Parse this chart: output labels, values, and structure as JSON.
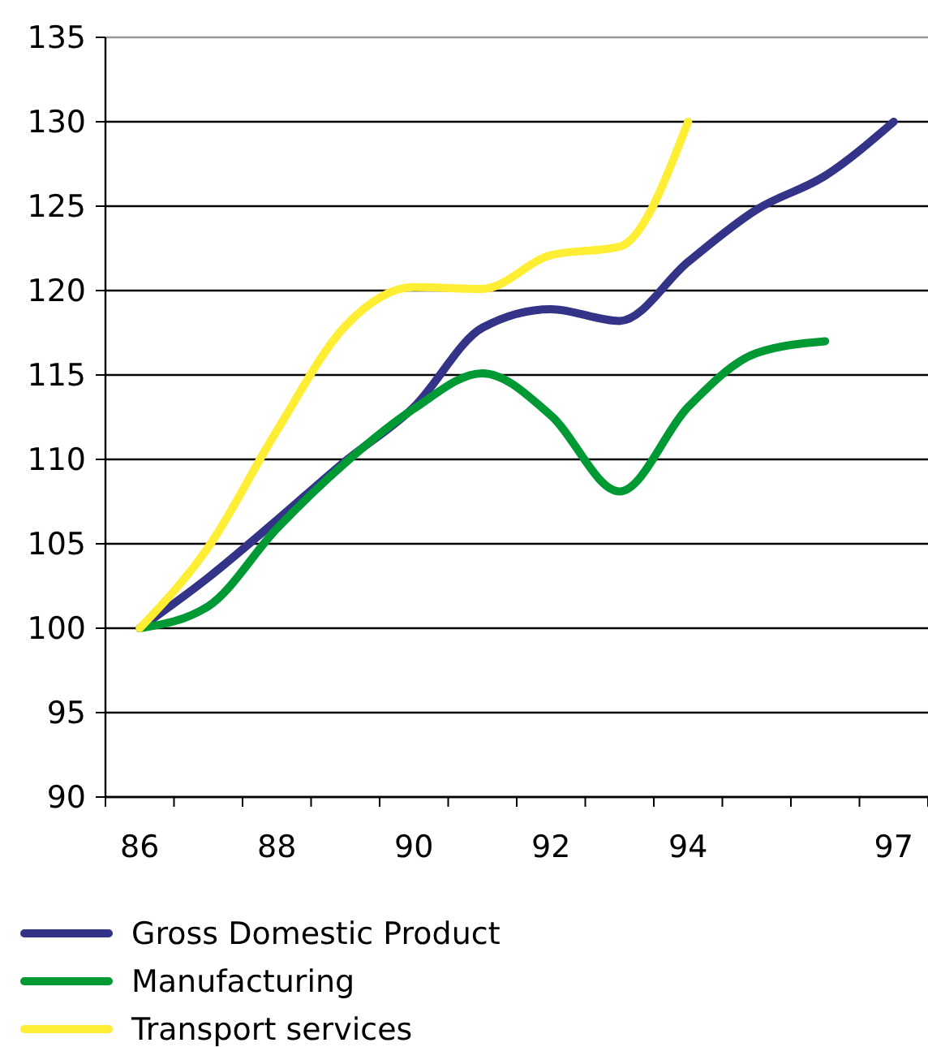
{
  "chart_data": {
    "type": "line",
    "categories": [
      "86",
      null,
      "88",
      null,
      "90",
      null,
      "92",
      null,
      "94",
      null,
      null,
      "97"
    ],
    "series": [
      {
        "name": "Gross Domestic Product",
        "color": "#333388",
        "values": [
          100,
          103.0,
          106.4,
          109.9,
          113.1,
          117.8,
          118.9,
          118.2,
          121.7,
          124.8,
          126.8,
          130
        ]
      },
      {
        "name": "Manufacturing",
        "color": "#009933",
        "values": [
          100,
          101.3,
          105.9,
          109.8,
          113.0,
          115.1,
          112.6,
          108.1,
          113.1,
          116.3,
          117.0,
          null
        ]
      },
      {
        "name": "Transport services",
        "color": "#ffee33",
        "values": [
          100,
          104.8,
          111.7,
          117.9,
          120.2,
          120.1,
          122.1,
          122.6,
          130,
          null,
          null,
          null
        ]
      }
    ],
    "ylim": [
      90,
      135
    ],
    "yticks": [
      90,
      95,
      100,
      105,
      110,
      115,
      120,
      125,
      130,
      135
    ],
    "grid": "y",
    "legend": "bottom",
    "marker": "none",
    "line_style": "solid"
  }
}
